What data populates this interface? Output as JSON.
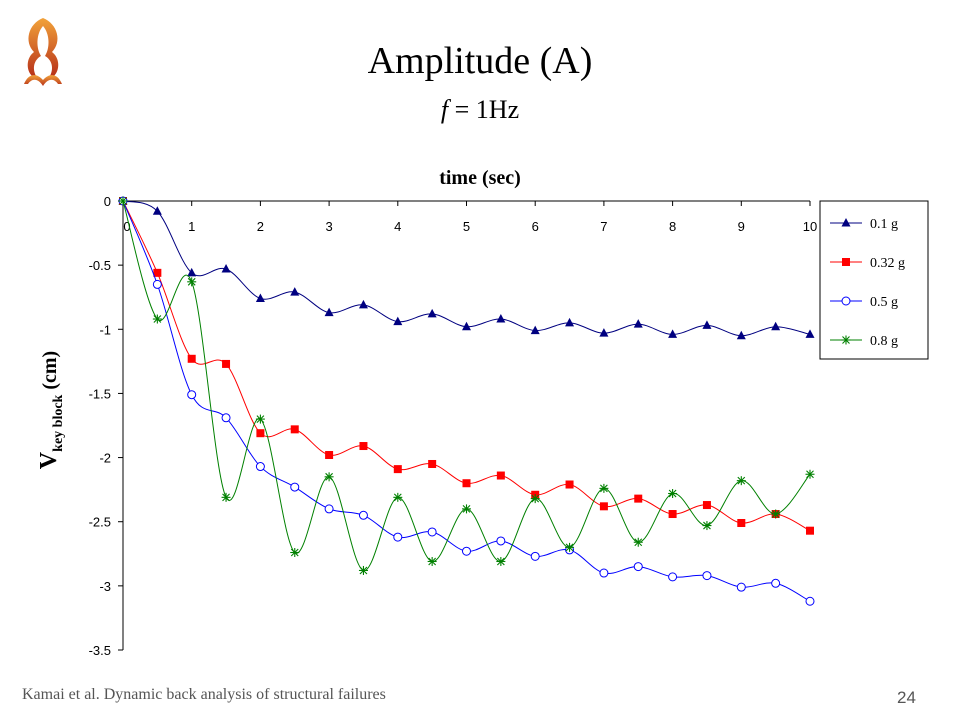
{
  "slide": {
    "title": "Amplitude (A)",
    "subtitle_var": "f",
    "subtitle_rest": " = 1Hz",
    "footer": "Kamai et al. Dynamic back analysis of structural failures",
    "page_number": "24"
  },
  "chart_data": {
    "type": "line",
    "xlabel": "time (sec)",
    "ylabel_main": "V",
    "ylabel_sub": "key block",
    "ylabel_unit": " (cm)",
    "xlim": [
      0,
      10
    ],
    "ylim": [
      -3.5,
      0
    ],
    "xticks": [
      0,
      1,
      2,
      3,
      4,
      5,
      6,
      7,
      8,
      9,
      10
    ],
    "yticks": [
      0,
      -0.5,
      -1,
      -1.5,
      -2,
      -2.5,
      -3,
      -3.5
    ],
    "grid": false,
    "legend_position": "right",
    "series": [
      {
        "name": "0.1 g",
        "color": "#000080",
        "marker": "triangle",
        "x": [
          0,
          0.5,
          1,
          1.5,
          2,
          2.5,
          3,
          3.5,
          4,
          4.5,
          5,
          5.5,
          6,
          6.5,
          7,
          7.5,
          8,
          8.5,
          9,
          9.5,
          10
        ],
        "y": [
          0,
          -0.08,
          -0.56,
          -0.53,
          -0.76,
          -0.71,
          -0.87,
          -0.81,
          -0.94,
          -0.88,
          -0.98,
          -0.92,
          -1.01,
          -0.95,
          -1.03,
          -0.96,
          -1.04,
          -0.97,
          -1.05,
          -0.98,
          -1.04
        ]
      },
      {
        "name": "0.32 g",
        "color": "#ff0000",
        "marker": "square",
        "x": [
          0,
          0.5,
          1,
          1.5,
          2,
          2.5,
          3,
          3.5,
          4,
          4.5,
          5,
          5.5,
          6,
          6.5,
          7,
          7.5,
          8,
          8.5,
          9,
          9.5,
          10
        ],
        "y": [
          0,
          -0.56,
          -1.23,
          -1.27,
          -1.81,
          -1.78,
          -1.98,
          -1.91,
          -2.09,
          -2.05,
          -2.2,
          -2.14,
          -2.29,
          -2.21,
          -2.38,
          -2.32,
          -2.44,
          -2.37,
          -2.51,
          -2.44,
          -2.57
        ]
      },
      {
        "name": "0.5 g",
        "color": "#0000ff",
        "marker": "circle",
        "x": [
          0,
          0.5,
          1,
          1.5,
          2,
          2.5,
          3,
          3.5,
          4,
          4.5,
          5,
          5.5,
          6,
          6.5,
          7,
          7.5,
          8,
          8.5,
          9,
          9.5,
          10
        ],
        "y": [
          0,
          -0.65,
          -1.51,
          -1.69,
          -2.07,
          -2.23,
          -2.4,
          -2.45,
          -2.62,
          -2.58,
          -2.73,
          -2.65,
          -2.77,
          -2.72,
          -2.9,
          -2.85,
          -2.93,
          -2.92,
          -3.01,
          -2.98,
          -3.12
        ]
      },
      {
        "name": "0.8 g",
        "color": "#008000",
        "marker": "star",
        "x": [
          0,
          0.5,
          1,
          1.5,
          2,
          2.5,
          3,
          3.5,
          4,
          4.5,
          5,
          5.5,
          6,
          6.5,
          7,
          7.5,
          8,
          8.5,
          9,
          9.5,
          10
        ],
        "y": [
          0,
          -0.92,
          -0.63,
          -2.31,
          -1.7,
          -2.74,
          -2.15,
          -2.88,
          -2.31,
          -2.81,
          -2.4,
          -2.81,
          -2.32,
          -2.7,
          -2.24,
          -2.66,
          -2.28,
          -2.53,
          -2.18,
          -2.44,
          -2.13
        ]
      }
    ]
  }
}
